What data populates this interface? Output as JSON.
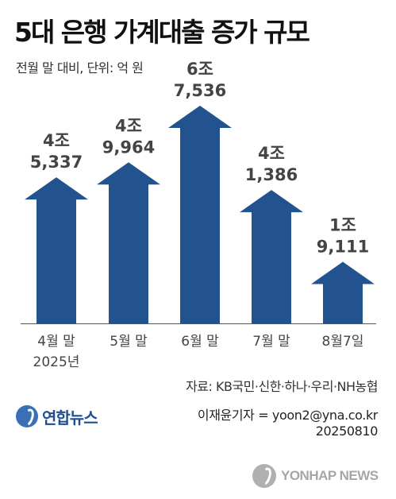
{
  "header": {
    "title": "5대 은행 가계대출 증가 규모",
    "subtitle": "전월 말 대비, 단위: 억 원"
  },
  "chart_data": {
    "type": "bar",
    "title": "5대 은행 가계대출 증가 규모",
    "subtitle": "전월 말 대비, 단위: 억 원",
    "unit": "억 원",
    "categories": [
      "4월 말\n2025년",
      "5월 말",
      "6월 말",
      "7월 말",
      "8월7일"
    ],
    "values": [
      45337,
      49964,
      67536,
      41386,
      19111
    ],
    "value_labels": [
      [
        "4조",
        "5,337"
      ],
      [
        "4조",
        "9,964"
      ],
      [
        "6조",
        "7,536"
      ],
      [
        "4조",
        "1,386"
      ],
      [
        "1조",
        "9,111"
      ]
    ],
    "ylim": [
      0,
      67536
    ],
    "grid": false,
    "legend": "none",
    "mark_shape": "arrow-up",
    "bar_color": "#23538f"
  },
  "footer": {
    "source": "자료: KB국민·신한·하나·우리·NH농협",
    "logo_text": "연합뉴스",
    "credit_reporter": "이재윤기자 = yoon2@yna.co.kr",
    "credit_date": "20250810",
    "watermark_text": "YONHAP NEWS"
  },
  "icons": {
    "logo": "yonhap-logo-icon",
    "watermark": "yonhap-watermark-icon"
  }
}
